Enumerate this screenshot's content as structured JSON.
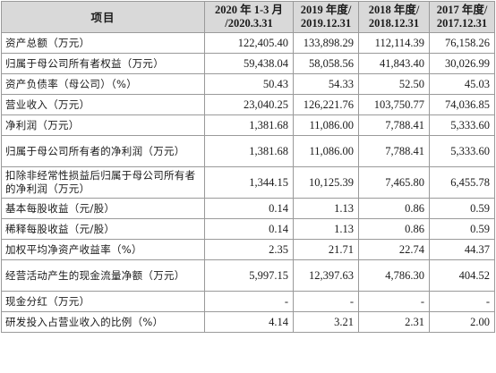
{
  "header": {
    "item": "项目",
    "periods": [
      {
        "line1": "2020 年 1-3 月",
        "line2": "/2020.3.31"
      },
      {
        "line1": "2019 年度/",
        "line2": "2019.12.31"
      },
      {
        "line1": "2018 年度/",
        "line2": "2018.12.31"
      },
      {
        "line1": "2017 年度/",
        "line2": "2017.12.31"
      }
    ]
  },
  "rows": [
    {
      "label": "资产总额（万元）",
      "values": [
        "122,405.40",
        "133,898.29",
        "112,114.39",
        "76,158.26"
      ]
    },
    {
      "label": "归属于母公司所有者权益（万元）",
      "values": [
        "59,438.04",
        "58,058.56",
        "41,843.40",
        "30,026.99"
      ]
    },
    {
      "label": "资产负债率（母公司）（%）",
      "values": [
        "50.43",
        "54.33",
        "52.50",
        "45.03"
      ]
    },
    {
      "label": "营业收入（万元）",
      "values": [
        "23,040.25",
        "126,221.76",
        "103,750.77",
        "74,036.85"
      ]
    },
    {
      "label": "净利润（万元）",
      "values": [
        "1,381.68",
        "11,086.00",
        "7,788.41",
        "5,333.60"
      ]
    },
    {
      "label": "归属于母公司所有者的净利润（万元）",
      "values": [
        "1,381.68",
        "11,086.00",
        "7,788.41",
        "5,333.60"
      ]
    },
    {
      "label": "扣除非经常性损益后归属于母公司所有者的净利润（万元）",
      "values": [
        "1,344.15",
        "10,125.39",
        "7,465.80",
        "6,455.78"
      ]
    },
    {
      "label": "基本每股收益（元/股）",
      "values": [
        "0.14",
        "1.13",
        "0.86",
        "0.59"
      ]
    },
    {
      "label": "稀释每股收益（元/股）",
      "values": [
        "0.14",
        "1.13",
        "0.86",
        "0.59"
      ]
    },
    {
      "label": "加权平均净资产收益率（%）",
      "values": [
        "2.35",
        "21.71",
        "22.74",
        "44.37"
      ]
    },
    {
      "label": "经营活动产生的现金流量净额（万元）",
      "values": [
        "5,997.15",
        "12,397.63",
        "4,786.30",
        "404.52"
      ]
    },
    {
      "label": "现金分红（万元）",
      "values": [
        "-",
        "-",
        "-",
        "-"
      ]
    },
    {
      "label": "研发投入占营业收入的比例（%）",
      "values": [
        "4.14",
        "3.21",
        "2.31",
        "2.00"
      ]
    }
  ]
}
